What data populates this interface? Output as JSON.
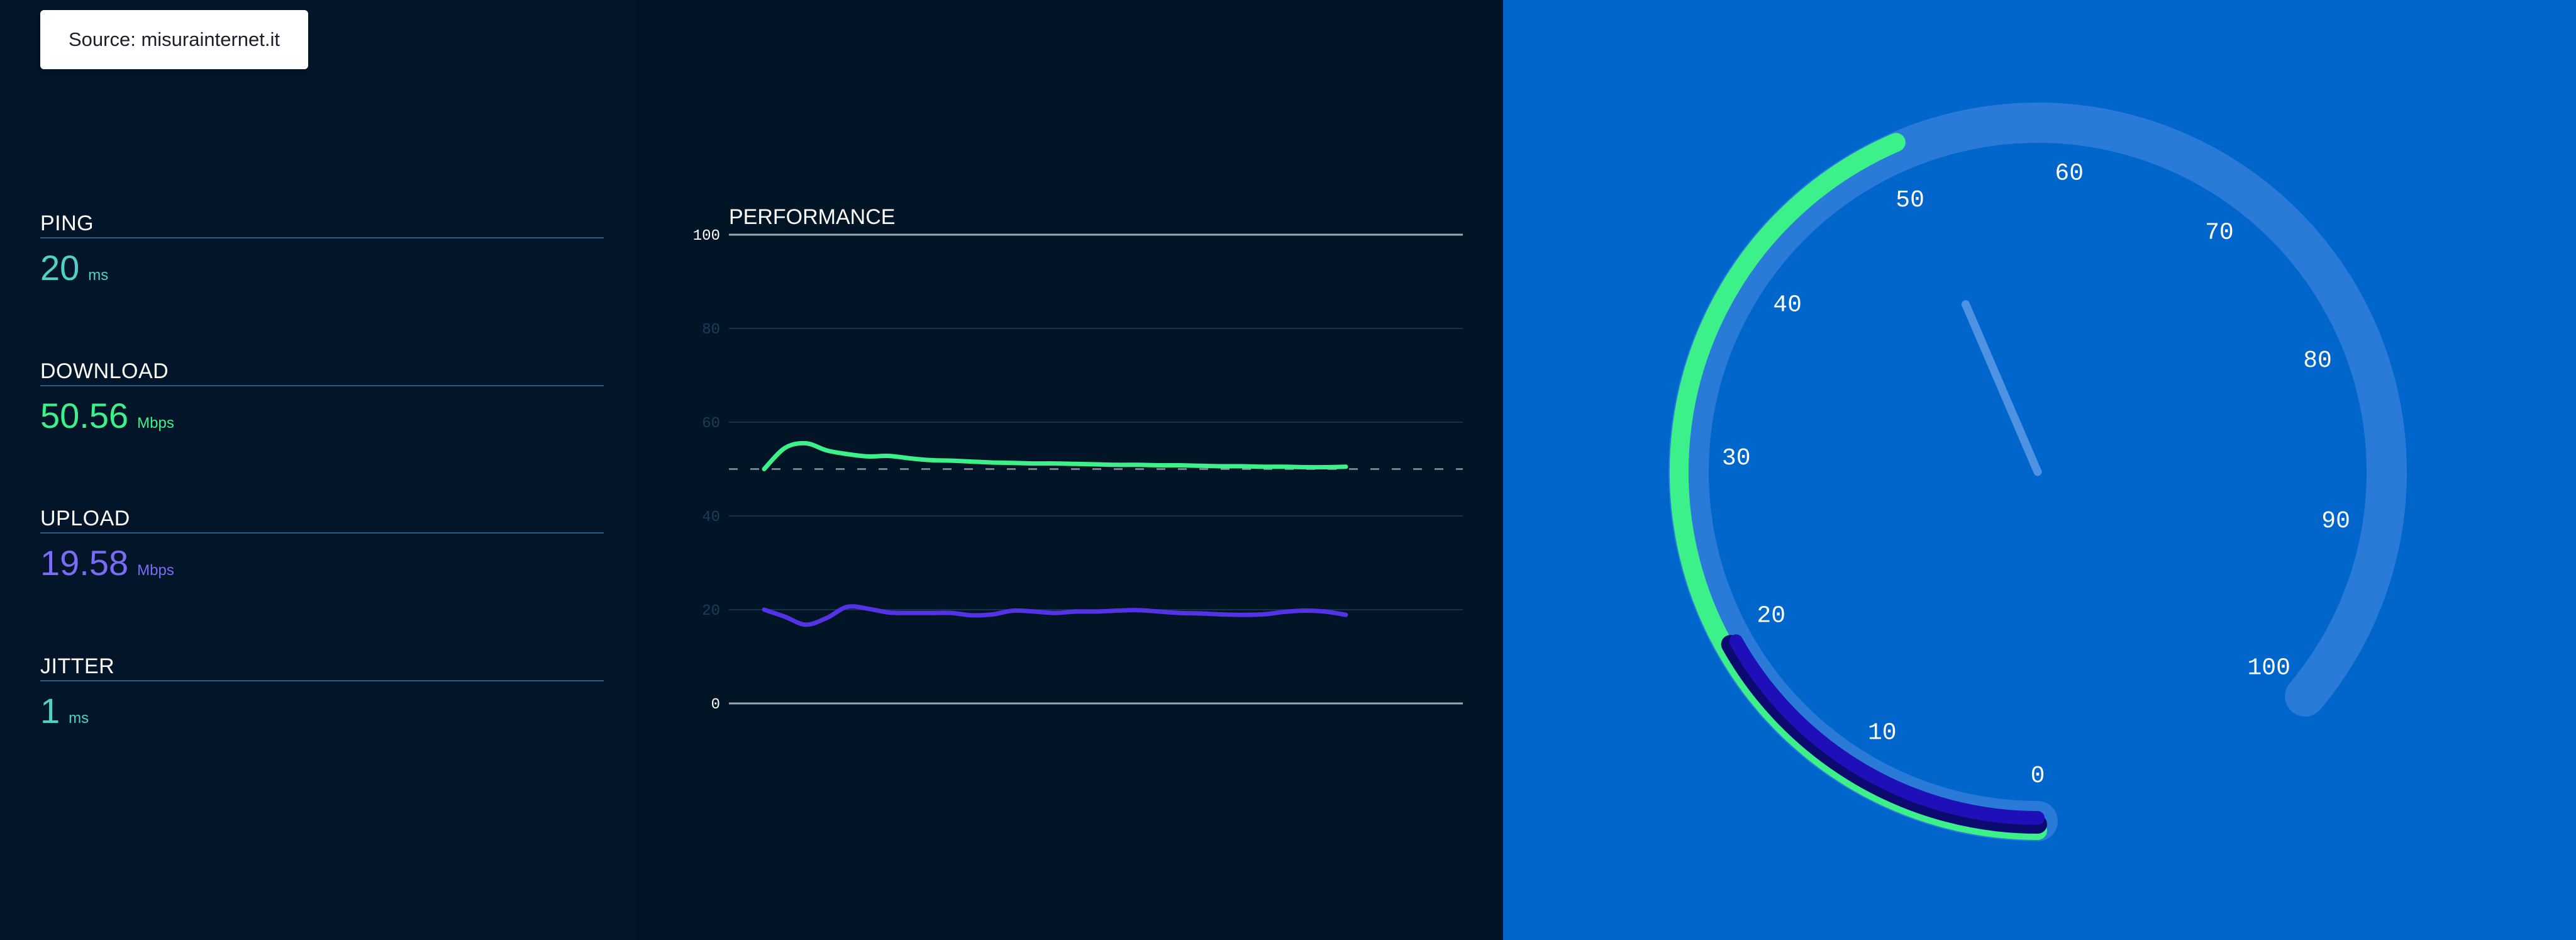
{
  "source": {
    "label": "Source: misurainternet.it"
  },
  "metrics": [
    {
      "key": "ping",
      "label": "PING",
      "value": "20",
      "unit": "ms",
      "color": "#4fd1c5"
    },
    {
      "key": "download",
      "label": "DOWNLOAD",
      "value": "50.56",
      "unit": "Mbps",
      "color": "#3cf08a"
    },
    {
      "key": "upload",
      "label": "UPLOAD",
      "value": "19.58",
      "unit": "Mbps",
      "color": "#7b6cf6"
    },
    {
      "key": "jitter",
      "label": "JITTER",
      "value": "1",
      "unit": "ms",
      "color": "#4fd1c5"
    }
  ],
  "performance": {
    "title": "PERFORMANCE",
    "chart_data": {
      "type": "line",
      "ylim": [
        0,
        100
      ],
      "ytick_labels": [
        "0",
        "20",
        "40",
        "60",
        "80",
        "100"
      ],
      "reference_line": 50,
      "series": [
        {
          "color": "#3cf08a",
          "values": [
            50,
            54.5,
            55.5,
            54,
            53.2,
            52.7,
            52.8,
            52.3,
            51.9,
            51.8,
            51.6,
            51.4,
            51.3,
            51.2,
            51.2,
            51.1,
            51.0,
            50.9,
            50.9,
            50.8,
            50.8,
            50.7,
            50.6,
            50.6,
            50.5,
            50.5,
            50.4,
            50.4,
            50.5
          ]
        },
        {
          "color": "#5433e6",
          "values": [
            20,
            18.5,
            16.8,
            18.2,
            20.6,
            20.2,
            19.4,
            19.3,
            19.3,
            19.3,
            18.8,
            19.0,
            19.8,
            19.6,
            19.3,
            19.6,
            19.6,
            19.8,
            19.9,
            19.6,
            19.3,
            19.2,
            19.0,
            18.9,
            19.0,
            19.5,
            19.8,
            19.6,
            18.9
          ]
        }
      ]
    }
  },
  "gauge": {
    "ticks": [
      "0",
      "10",
      "20",
      "30",
      "40",
      "50",
      "60",
      "70",
      "80",
      "90",
      "100"
    ],
    "download_value": 50.56,
    "upload_value": 19.58,
    "needle_value": 50.56,
    "colors": {
      "track": "#2a7ad8",
      "download": "#3cf08a",
      "upload": "#1f0fb8",
      "upload_shadow": "#0b0a6e",
      "needle": "#4d92e3",
      "tick_text": "#ffffff"
    }
  }
}
